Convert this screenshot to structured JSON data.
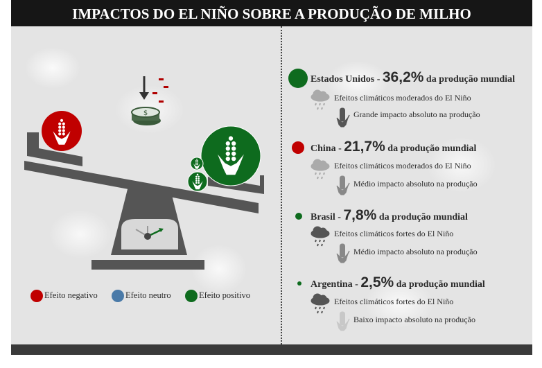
{
  "title": "IMPACTOS DO EL NIÑO SOBRE A PRODUÇÃO DE MILHO",
  "legend": [
    {
      "label": "Efeito negativo",
      "color": "#c00000"
    },
    {
      "label": "Efeito neutro",
      "color": "#4a7aa8"
    },
    {
      "label": "Efeito positivo",
      "color": "#0e6b1e"
    }
  ],
  "countries": [
    {
      "name": "Estados Unidos - ",
      "share": "36,2%",
      "suffix": " da produção mundial",
      "climate": "Efeitos climáticos moderados do El Niño",
      "impact": "Grande impacto absoluto na produção",
      "color": "#0e6b1e"
    },
    {
      "name": "China - ",
      "share": "21,7%",
      "suffix": " da produção mundial",
      "climate": "Efeitos climáticos moderados do El Niño",
      "impact": "Médio impacto absoluto na produção",
      "color": "#c00000"
    },
    {
      "name": "Brasil - ",
      "share": "7,8%",
      "suffix": " da produção mundial",
      "climate": "Efeitos climáticos fortes do El Niño",
      "impact": "Médio impacto absoluto na produção",
      "color": "#0e6b1e"
    },
    {
      "name": "Argentina - ",
      "share": "2,5%",
      "suffix": " da produção mundial",
      "climate": "Efeitos climáticos fortes do El Niño",
      "impact": "Baixo impacto absoluto na produção",
      "color": "#0e6b1e"
    }
  ]
}
